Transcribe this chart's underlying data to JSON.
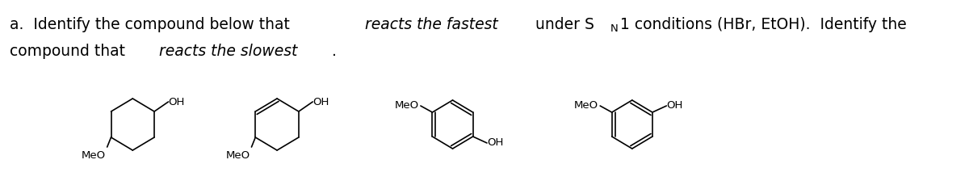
{
  "title_line1_parts": [
    {
      "text": "a.  Identify the compound below that ",
      "style": "normal"
    },
    {
      "text": "reacts the fastest",
      "style": "italic"
    },
    {
      "text": " under S",
      "style": "normal"
    },
    {
      "text": "N",
      "style": "normal_sub"
    },
    {
      "text": "1 conditions (HBr, EtOH).  Identify the",
      "style": "normal"
    }
  ],
  "title_line2_parts": [
    {
      "text": "compound that ",
      "style": "normal"
    },
    {
      "text": "reacts the slowest",
      "style": "italic"
    },
    {
      "text": ".",
      "style": "normal"
    }
  ],
  "background_color": "#ffffff",
  "text_color": "#000000",
  "fontsize": 13.5
}
